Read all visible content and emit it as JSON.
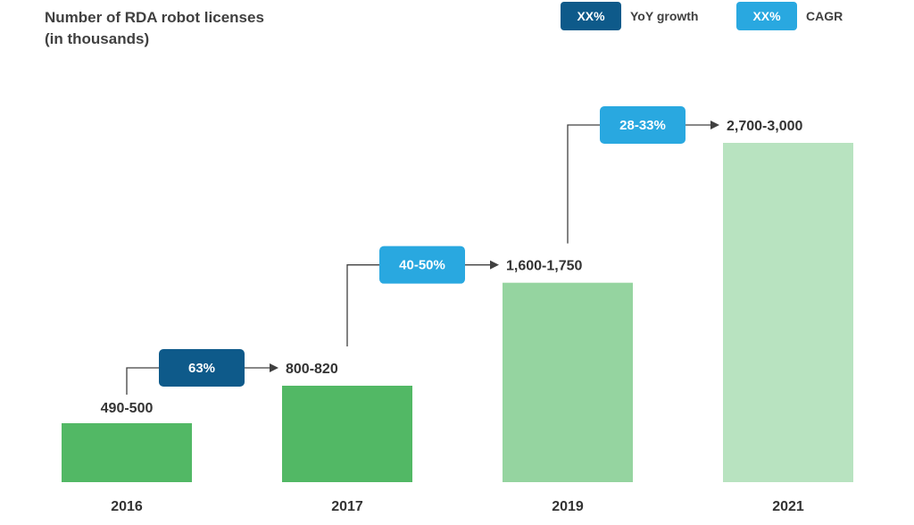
{
  "title": {
    "line1": "Number of RDA robot licenses",
    "line2": "(in thousands)"
  },
  "legend": {
    "yoy": {
      "swatch_text": "XX%",
      "label": "YoY growth",
      "color": "#0e5a8a"
    },
    "cagr": {
      "swatch_text": "XX%",
      "label": "CAGR",
      "color": "#29a8e0"
    }
  },
  "chart_data": {
    "type": "bar",
    "title": "Number of RDA robot licenses (in thousands)",
    "categories": [
      "2016",
      "2017",
      "2019",
      "2021"
    ],
    "ranges": [
      [
        490,
        500
      ],
      [
        800,
        820
      ],
      [
        1600,
        1750
      ],
      [
        2700,
        3000
      ]
    ],
    "values": [
      495,
      810,
      1675,
      2850
    ],
    "data_labels": [
      "490-500",
      "800-820",
      "1,600-1,750",
      "2,700-3,000"
    ],
    "bar_colors": [
      "#52b865",
      "#52b865",
      "#95d4a0",
      "#b8e3c0"
    ],
    "ylim": [
      0,
      3000
    ],
    "xlabel": "",
    "ylabel": "",
    "growth_annotations": [
      {
        "from": "2016",
        "to": "2017",
        "label": "63%",
        "kind": "YoY growth",
        "color": "#0e5a8a"
      },
      {
        "from": "2017",
        "to": "2019",
        "label": "40-50%",
        "kind": "CAGR",
        "color": "#29a8e0"
      },
      {
        "from": "2019",
        "to": "2021",
        "label": "28-33%",
        "kind": "CAGR",
        "color": "#29a8e0"
      }
    ]
  }
}
